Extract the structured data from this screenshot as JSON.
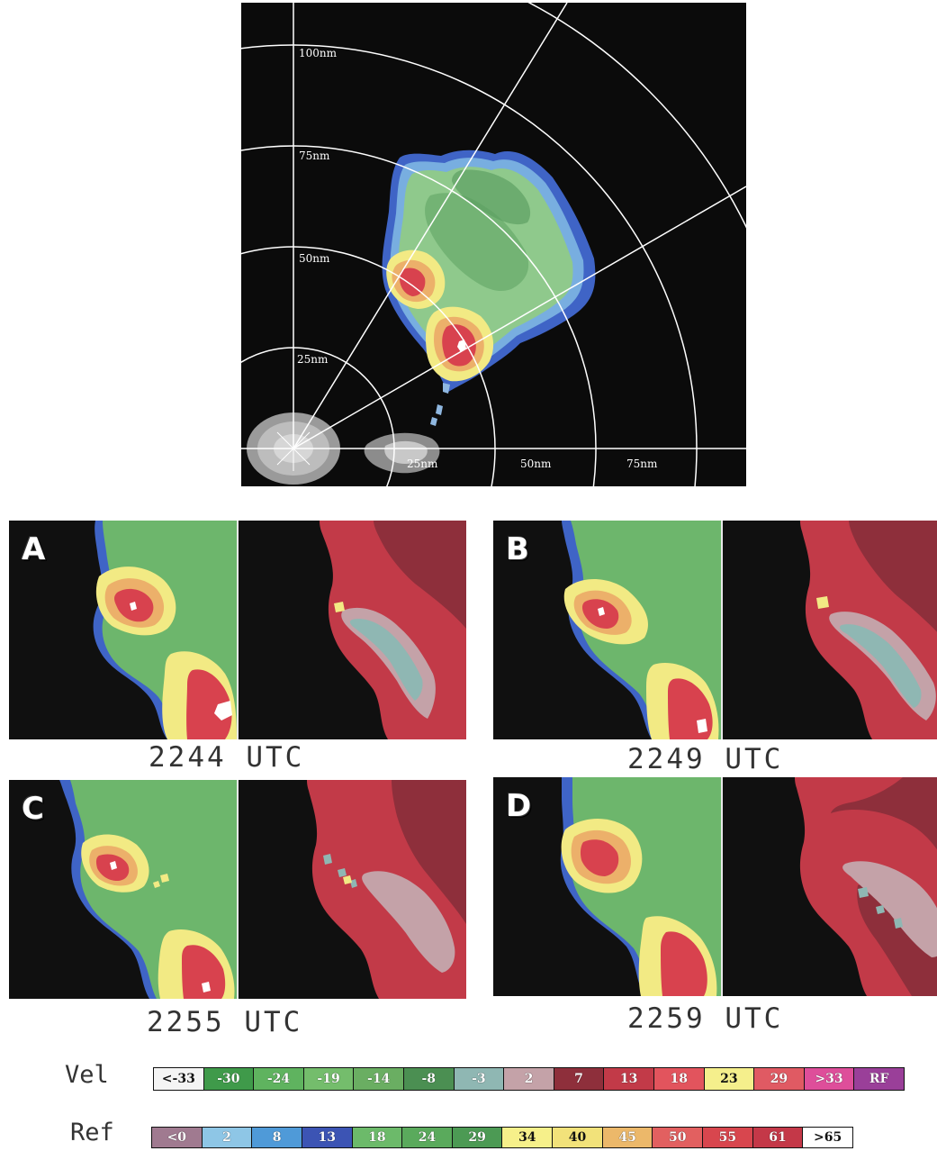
{
  "overview": {
    "range_rings": [
      {
        "label": "25nm"
      },
      {
        "label": "50nm"
      },
      {
        "label": "75nm"
      },
      {
        "label": "100nm"
      }
    ],
    "x_ticks": [
      "25nm",
      "50nm",
      "75nm"
    ]
  },
  "panels": [
    {
      "letter": "A",
      "time": "2244 UTC"
    },
    {
      "letter": "B",
      "time": "2249 UTC"
    },
    {
      "letter": "C",
      "time": "2255 UTC"
    },
    {
      "letter": "D",
      "time": "2259 UTC"
    }
  ],
  "legends": {
    "velocity": {
      "name": "Vel",
      "cells": [
        {
          "label": "<-33",
          "color": "#f4f4f4"
        },
        {
          "label": "-30",
          "color": "#3f9a4a"
        },
        {
          "label": "-24",
          "color": "#5fb35f"
        },
        {
          "label": "-19",
          "color": "#74bd6c"
        },
        {
          "label": "-14",
          "color": "#6aae62"
        },
        {
          "label": "-8",
          "color": "#4b8f52"
        },
        {
          "label": "-3",
          "color": "#8fb7b3"
        },
        {
          "label": "2",
          "color": "#c4a2a8"
        },
        {
          "label": "7",
          "color": "#8e2f3b"
        },
        {
          "label": "13",
          "color": "#c23a48"
        },
        {
          "label": "18",
          "color": "#e2545d"
        },
        {
          "label": "23",
          "color": "#f5ef8c"
        },
        {
          "label": "29",
          "color": "#e05a63"
        },
        {
          "label": ">33",
          "color": "#de4e9a"
        },
        {
          "label": "RF",
          "color": "#9a3f99"
        }
      ]
    },
    "reflectivity": {
      "name": "Ref",
      "cells": [
        {
          "label": "<0",
          "color": "#a07a90"
        },
        {
          "label": "2",
          "color": "#8ec6e6"
        },
        {
          "label": "8",
          "color": "#4f9ad8"
        },
        {
          "label": "13",
          "color": "#3c54b4"
        },
        {
          "label": "18",
          "color": "#6cba6a"
        },
        {
          "label": "24",
          "color": "#5aaa5c"
        },
        {
          "label": "29",
          "color": "#4c9a54"
        },
        {
          "label": "34",
          "color": "#f6f08a"
        },
        {
          "label": "40",
          "color": "#f2e27a"
        },
        {
          "label": "45",
          "color": "#ecb86a"
        },
        {
          "label": "50",
          "color": "#e26060"
        },
        {
          "label": "55",
          "color": "#d8464e"
        },
        {
          "label": "61",
          "color": "#c43848"
        },
        {
          "label": ">65",
          "color": "#ffffff"
        }
      ]
    }
  }
}
